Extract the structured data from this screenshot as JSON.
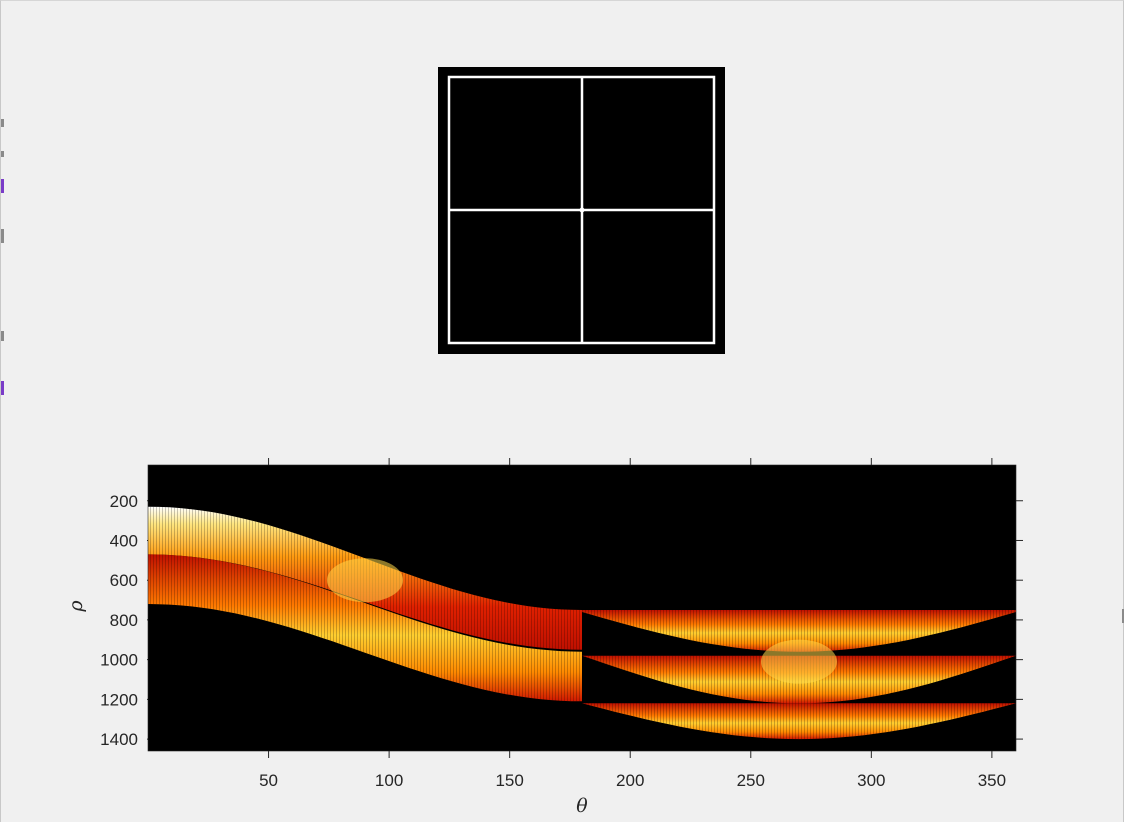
{
  "window": {
    "background": "#f0f0f0"
  },
  "image_panel": {
    "description_icon": "grid-square-image",
    "background": "#000000",
    "line_color": "#ffffff"
  },
  "chart_data": {
    "type": "heatmap",
    "title": "",
    "xlabel": "θ",
    "ylabel": "ρ",
    "xlim": [
      0,
      360
    ],
    "ylim": [
      1460,
      20
    ],
    "y_direction": "reversed",
    "xticks": [
      50,
      100,
      150,
      200,
      250,
      300,
      350
    ],
    "yticks": [
      200,
      400,
      600,
      800,
      1000,
      1200,
      1400
    ],
    "colormap": "hot",
    "background_value_color": "#000000",
    "bands": [
      {
        "name": "band-1",
        "segments": [
          {
            "x": [
              0,
              180
            ],
            "rho_top": [
              230,
              750
            ],
            "rho_bottom": [
              470,
              950
            ]
          },
          {
            "x": [
              180,
              360
            ],
            "rho_top": [
              750,
              750
            ],
            "rho_bottom": [
              960,
              760
            ]
          }
        ]
      },
      {
        "name": "band-2",
        "segments": [
          {
            "x": [
              0,
              180
            ],
            "rho_top": [
              470,
              960
            ],
            "rho_bottom": [
              720,
              1210
            ]
          },
          {
            "x": [
              180,
              360
            ],
            "rho_top": [
              980,
              980
            ],
            "rho_bottom": [
              1220,
              980
            ]
          }
        ]
      },
      {
        "name": "band-3",
        "segments": [
          {
            "x": [
              0,
              180
            ],
            "rho_top": [
              720,
              1210
            ],
            "rho_bottom": [
              720,
              1210
            ]
          },
          {
            "x": [
              180,
              360
            ],
            "rho_top": [
              1220,
              1220
            ],
            "rho_bottom": [
              1400,
              1220
            ]
          }
        ]
      }
    ],
    "peaks": [
      {
        "x": 90,
        "rho": 600
      },
      {
        "x": 270,
        "rho": 1010
      }
    ],
    "grid": false
  }
}
